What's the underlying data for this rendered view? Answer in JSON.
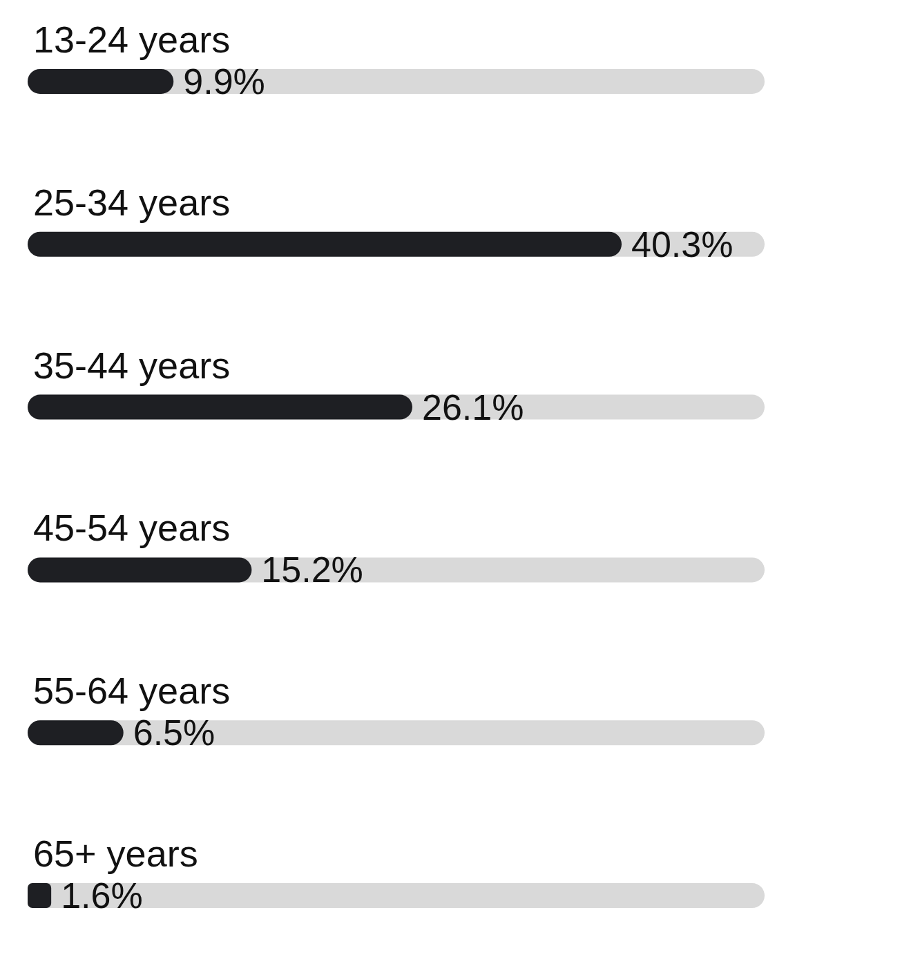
{
  "chart_data": {
    "type": "bar",
    "orientation": "horizontal",
    "categories": [
      "13-24 years",
      "25-34 years",
      "35-44 years",
      "45-54 years",
      "55-64 years",
      "65+ years"
    ],
    "values": [
      9.9,
      40.3,
      26.1,
      15.2,
      6.5,
      1.6
    ],
    "value_labels": [
      "9.9%",
      "40.3%",
      "26.1%",
      "15.2%",
      "6.5%",
      "1.6%"
    ],
    "color": "#1e1f23"
  }
}
